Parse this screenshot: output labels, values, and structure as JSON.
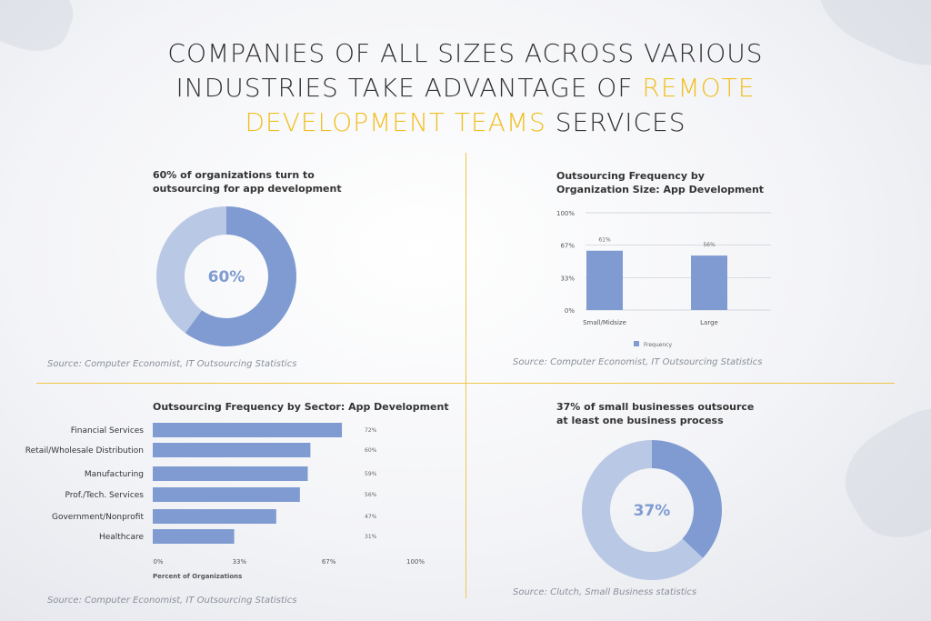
{
  "title": {
    "part1": "COMPANIES OF ALL SIZES ACROSS VARIOUS",
    "part2": "INDUSTRIES TAKE ADVANTAGE OF ",
    "highlight1": "REMOTE",
    "highlight2": "DEVELOPMENT TEAMS",
    "part3": " SERVICES"
  },
  "colors": {
    "accent": "#f0bf23",
    "bar": "#7f9bd1",
    "donut_main": "#7f9bd1",
    "donut_rest": "#b9c8e4"
  },
  "chart_data": [
    {
      "type": "pie",
      "title_line1": "60% of organizations turn to",
      "title_line2": "outsourcing for app development",
      "center_label": "60%",
      "values": [
        60,
        40
      ],
      "source": "Source: Computer Economist, IT Outsourcing Statistics"
    },
    {
      "type": "bar",
      "title_line1": "Outsourcing Frequency by",
      "title_line2": "Organization Size: App Development",
      "categories": [
        "Small/Midsize",
        "Large"
      ],
      "values": [
        61,
        56
      ],
      "value_labels": [
        "61%",
        "56%"
      ],
      "y_ticks": [
        "0%",
        "33%",
        "67%",
        "100%"
      ],
      "y_tick_values": [
        0,
        33,
        67,
        100
      ],
      "ylim": [
        0,
        100
      ],
      "legend": "Frequency",
      "source": "Source: Computer Economist, IT Outsourcing Statistics"
    },
    {
      "type": "bar",
      "orientation": "horizontal",
      "title": "Outsourcing Frequency by Sector: App Development",
      "categories": [
        "Financial Services",
        "Retail/Wholesale Distribution",
        "Manufacturing",
        "Prof./Tech. Services",
        "Government/Nonprofit",
        "Healthcare"
      ],
      "values": [
        72,
        60,
        59,
        56,
        47,
        31
      ],
      "value_labels": [
        "72%",
        "60%",
        "59%",
        "56%",
        "47%",
        "31%"
      ],
      "x_ticks": [
        "0%",
        "33%",
        "67%",
        "100%"
      ],
      "x_tick_values": [
        0,
        33,
        67,
        100
      ],
      "xlim": [
        0,
        100
      ],
      "xlabel": "Percent of Organizations",
      "source": "Source: Computer Economist, IT Outsourcing Statistics"
    },
    {
      "type": "pie",
      "title_line1": "37% of small businesses outsource",
      "title_line2": "at least one business process",
      "center_label": "37%",
      "values": [
        37,
        63
      ],
      "source": "Source: Clutch, Small Business statistics"
    }
  ]
}
